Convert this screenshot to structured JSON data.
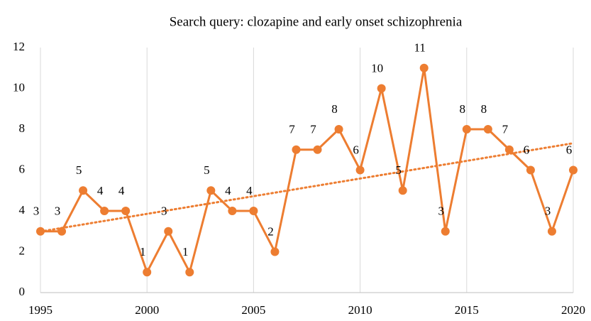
{
  "chart_data": {
    "type": "line",
    "title": "Search query: clozapine and early onset schizophrenia",
    "x": [
      1995,
      1996,
      1997,
      1998,
      1999,
      2000,
      2001,
      2002,
      2003,
      2004,
      2005,
      2006,
      2007,
      2008,
      2009,
      2010,
      2011,
      2012,
      2013,
      2014,
      2015,
      2016,
      2017,
      2018,
      2019,
      2020
    ],
    "values": [
      3,
      3,
      5,
      4,
      4,
      1,
      3,
      1,
      5,
      4,
      4,
      2,
      7,
      7,
      8,
      6,
      10,
      5,
      11,
      3,
      8,
      8,
      7,
      6,
      3,
      6
    ],
    "color": "#ed7d31",
    "xlim": [
      1995,
      2020
    ],
    "xticks": [
      1995,
      2000,
      2005,
      2010,
      2015,
      2020
    ],
    "ylim": [
      0,
      12
    ],
    "yticks": [
      0,
      2,
      4,
      6,
      8,
      10,
      12
    ],
    "grid": "x",
    "trendline": "linear",
    "data_labels": true
  }
}
